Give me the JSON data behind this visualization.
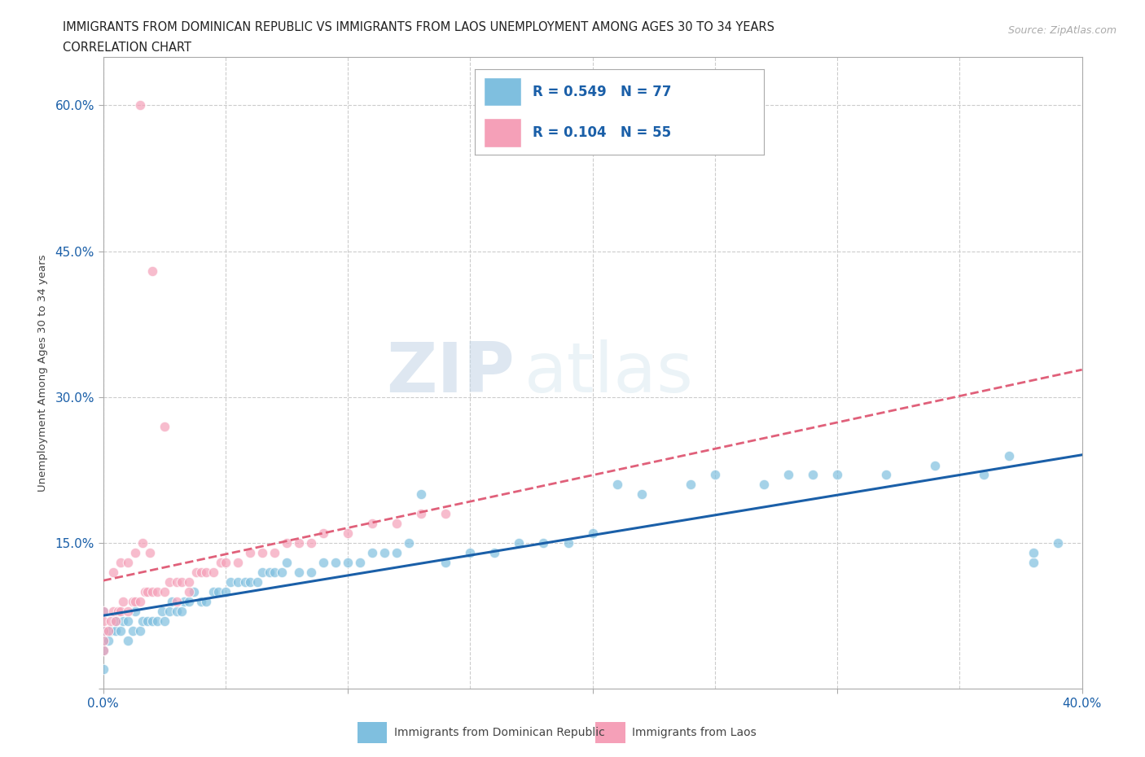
{
  "title_line1": "IMMIGRANTS FROM DOMINICAN REPUBLIC VS IMMIGRANTS FROM LAOS UNEMPLOYMENT AMONG AGES 30 TO 34 YEARS",
  "title_line2": "CORRELATION CHART",
  "source_text": "Source: ZipAtlas.com",
  "ylabel": "Unemployment Among Ages 30 to 34 years",
  "x_min": 0.0,
  "x_max": 0.4,
  "y_min": 0.0,
  "y_max": 0.65,
  "background_color": "#ffffff",
  "grid_color": "#cccccc",
  "watermark_zip": "ZIP",
  "watermark_atlas": "atlas",
  "series1_color": "#7fbfdf",
  "series2_color": "#f5a0b8",
  "series1_name": "Immigrants from Dominican Republic",
  "series2_name": "Immigrants from Laos",
  "series1_R": 0.549,
  "series1_N": 77,
  "series2_R": 0.104,
  "series2_N": 55,
  "series1_trendline_color": "#1a5fa8",
  "series2_trendline_color": "#e0607a",
  "legend_text_color": "#1a5fa8",
  "tick_color": "#1a5fa8",
  "series1_x": [
    0.0,
    0.0,
    0.0,
    0.0,
    0.0,
    0.002,
    0.003,
    0.005,
    0.005,
    0.007,
    0.008,
    0.01,
    0.01,
    0.012,
    0.013,
    0.015,
    0.016,
    0.018,
    0.02,
    0.022,
    0.024,
    0.025,
    0.027,
    0.028,
    0.03,
    0.032,
    0.033,
    0.035,
    0.037,
    0.04,
    0.042,
    0.045,
    0.047,
    0.05,
    0.052,
    0.055,
    0.058,
    0.06,
    0.063,
    0.065,
    0.068,
    0.07,
    0.073,
    0.075,
    0.08,
    0.085,
    0.09,
    0.095,
    0.1,
    0.105,
    0.11,
    0.115,
    0.12,
    0.125,
    0.13,
    0.14,
    0.15,
    0.16,
    0.17,
    0.18,
    0.19,
    0.2,
    0.21,
    0.22,
    0.24,
    0.25,
    0.27,
    0.28,
    0.29,
    0.3,
    0.32,
    0.34,
    0.36,
    0.37,
    0.38,
    0.38,
    0.39
  ],
  "series1_y": [
    0.02,
    0.04,
    0.05,
    0.06,
    0.08,
    0.05,
    0.06,
    0.06,
    0.07,
    0.06,
    0.07,
    0.05,
    0.07,
    0.06,
    0.08,
    0.06,
    0.07,
    0.07,
    0.07,
    0.07,
    0.08,
    0.07,
    0.08,
    0.09,
    0.08,
    0.08,
    0.09,
    0.09,
    0.1,
    0.09,
    0.09,
    0.1,
    0.1,
    0.1,
    0.11,
    0.11,
    0.11,
    0.11,
    0.11,
    0.12,
    0.12,
    0.12,
    0.12,
    0.13,
    0.12,
    0.12,
    0.13,
    0.13,
    0.13,
    0.13,
    0.14,
    0.14,
    0.14,
    0.15,
    0.2,
    0.13,
    0.14,
    0.14,
    0.15,
    0.15,
    0.15,
    0.16,
    0.21,
    0.2,
    0.21,
    0.22,
    0.21,
    0.22,
    0.22,
    0.22,
    0.22,
    0.23,
    0.22,
    0.24,
    0.13,
    0.14,
    0.15
  ],
  "series2_x": [
    0.0,
    0.0,
    0.0,
    0.0,
    0.0,
    0.002,
    0.003,
    0.004,
    0.005,
    0.006,
    0.007,
    0.008,
    0.01,
    0.012,
    0.013,
    0.015,
    0.017,
    0.018,
    0.02,
    0.022,
    0.025,
    0.027,
    0.03,
    0.032,
    0.035,
    0.038,
    0.04,
    0.042,
    0.045,
    0.048,
    0.05,
    0.055,
    0.06,
    0.065,
    0.07,
    0.075,
    0.08,
    0.085,
    0.09,
    0.1,
    0.11,
    0.12,
    0.13,
    0.14,
    0.015,
    0.02,
    0.025,
    0.03,
    0.035,
    0.004,
    0.007,
    0.01,
    0.013,
    0.016,
    0.019
  ],
  "series2_y": [
    0.04,
    0.05,
    0.06,
    0.07,
    0.08,
    0.06,
    0.07,
    0.08,
    0.07,
    0.08,
    0.08,
    0.09,
    0.08,
    0.09,
    0.09,
    0.09,
    0.1,
    0.1,
    0.1,
    0.1,
    0.1,
    0.11,
    0.11,
    0.11,
    0.11,
    0.12,
    0.12,
    0.12,
    0.12,
    0.13,
    0.13,
    0.13,
    0.14,
    0.14,
    0.14,
    0.15,
    0.15,
    0.15,
    0.16,
    0.16,
    0.17,
    0.17,
    0.18,
    0.18,
    0.6,
    0.43,
    0.27,
    0.09,
    0.1,
    0.12,
    0.13,
    0.13,
    0.14,
    0.15,
    0.14
  ]
}
